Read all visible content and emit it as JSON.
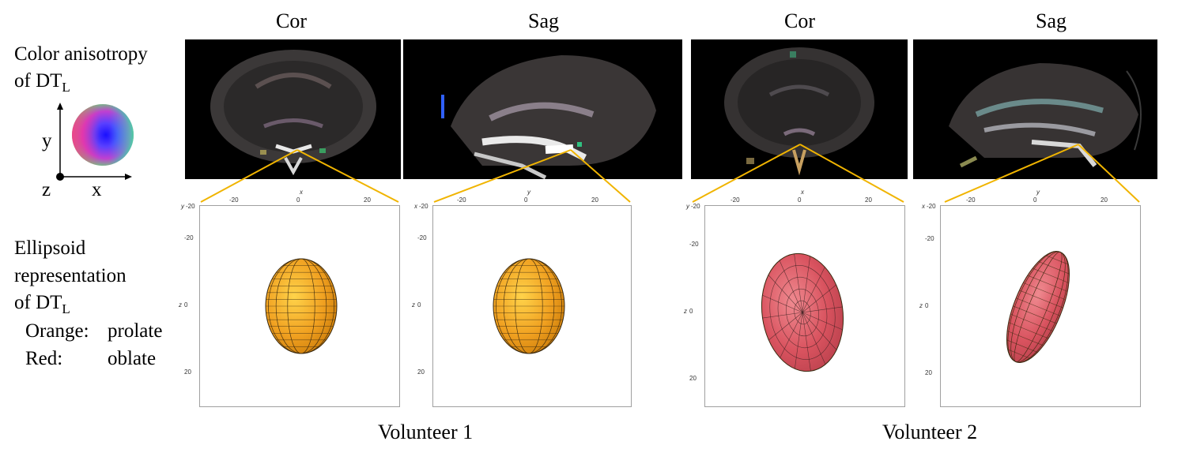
{
  "legend": {
    "color_title": "Color anisotropy",
    "color_of": "of DT",
    "subscript": "L",
    "axis_y": "y",
    "axis_z": "z",
    "axis_x": "x",
    "ellipsoid_title_1": "Ellipsoid",
    "ellipsoid_title_2": "representation",
    "ellipsoid_of": "of DT",
    "orange_key": "Orange:",
    "orange_value": "prolate",
    "red_key": "Red:",
    "red_value": "oblate"
  },
  "columns": [
    {
      "header": "Cor",
      "h_axis": "x",
      "v_axis": "y",
      "z_axis": "z",
      "shape": "prolate",
      "color": "#f0a020"
    },
    {
      "header": "Sag",
      "h_axis": "y",
      "v_axis": "x",
      "z_axis": "z",
      "shape": "prolate",
      "color": "#f0a020"
    },
    {
      "header": "Cor",
      "h_axis": "x",
      "v_axis": "y",
      "z_axis": "z",
      "shape": "oblate",
      "color": "#d9535f"
    },
    {
      "header": "Sag",
      "h_axis": "y",
      "v_axis": "x",
      "z_axis": "z",
      "shape": "oblate",
      "color": "#d9535f"
    }
  ],
  "ticks": {
    "top": [
      "-20",
      "0",
      "20"
    ],
    "top_start": "-20",
    "left": [
      "-20",
      "0",
      "20"
    ]
  },
  "volunteers": [
    "Volunteer 1",
    "Volunteer 2"
  ],
  "colors": {
    "connector": "#f0b400",
    "orange": "#f0a020",
    "red": "#d9535f"
  }
}
